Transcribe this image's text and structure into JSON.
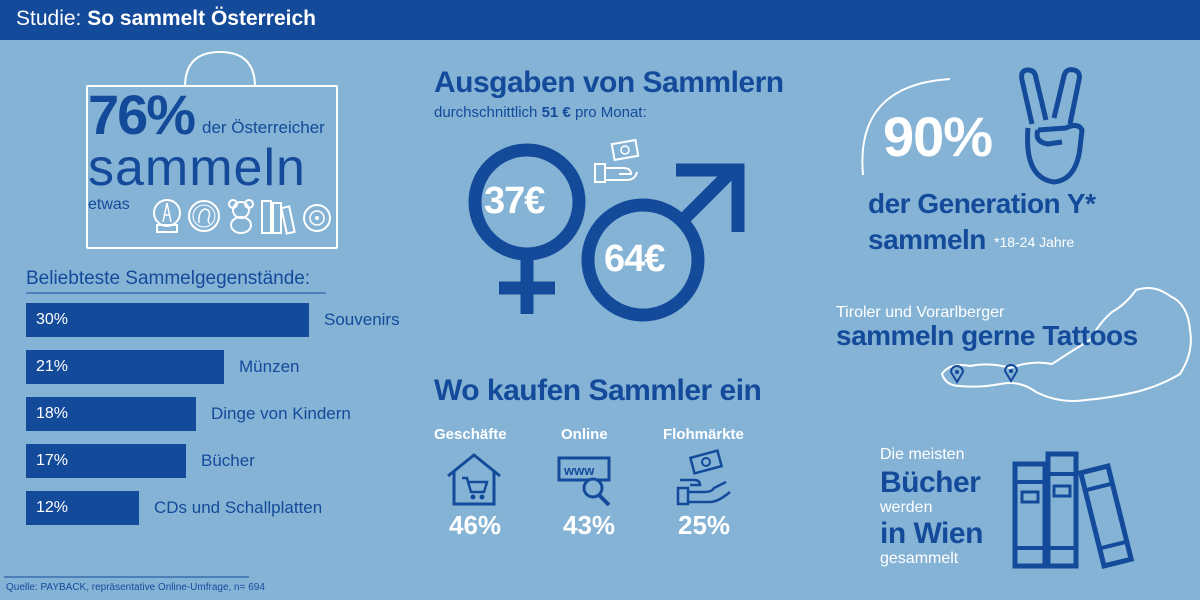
{
  "header": {
    "prefix": "Studie:",
    "title": "So sammelt Österreich"
  },
  "collectors": {
    "percent": "76%",
    "line1": "der Österreicher",
    "line2": "sammeln",
    "line3": "etwas"
  },
  "popular": {
    "title": "Beliebteste Sammelgegenstände:",
    "items": [
      {
        "value": "30%",
        "label": "Souvenirs",
        "pct": 30
      },
      {
        "value": "21%",
        "label": "Münzen",
        "pct": 21
      },
      {
        "value": "18%",
        "label": "Dinge von Kindern",
        "pct": 18
      },
      {
        "value": "17%",
        "label": "Bücher",
        "pct": 17
      },
      {
        "value": "12%",
        "label": "CDs und Schallplatten",
        "pct": 12
      }
    ]
  },
  "spending": {
    "title": "Ausgaben von Sammlern",
    "subtitle_pre": "durchschnittlich",
    "subtitle_amount": "51 €",
    "subtitle_post": "pro Monat:",
    "female_amount": "37€",
    "male_amount": "64€"
  },
  "shopping": {
    "title": "Wo kaufen Sammler ein",
    "channels": [
      {
        "label": "Geschäfte",
        "value": "46%"
      },
      {
        "label": "Online",
        "value": "43%"
      },
      {
        "label": "Flohmärkte",
        "value": "25%"
      }
    ]
  },
  "genY": {
    "percent": "90%",
    "line1": "der Generation Y*",
    "line2": "sammeln",
    "footnote": "*18-24 Jahre"
  },
  "tattoos": {
    "line1": "Tiroler und Vorarlberger",
    "line2": "sammeln gerne Tattoos"
  },
  "books": {
    "line1": "Die meisten",
    "line2": "Bücher",
    "line3": "werden",
    "line4": "in Wien",
    "line5": "gesammelt"
  },
  "source": "Quelle: PAYBACK, repräsentative Online-Umfrage, n= 694",
  "colors": {
    "background": "#85b3d6",
    "accent": "#144a9a",
    "white": "#ffffff"
  }
}
